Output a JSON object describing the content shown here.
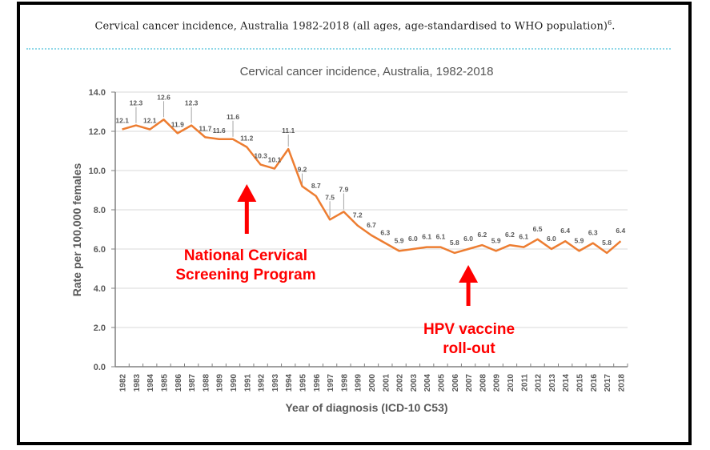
{
  "caption": {
    "text": "Cervical cancer incidence, Australia 1982-2018 (all ages, age-standardised to WHO population)",
    "superscript": "6",
    "trailing": "."
  },
  "colors": {
    "line": "#ed7d31",
    "annotation": "#ff0000",
    "divider": "#8fd8e8",
    "gridline": "#d9d9d9",
    "axis": "#808080",
    "text": "#595959"
  },
  "chart_data": {
    "type": "line",
    "title": "Cervical cancer incidence, Australia, 1982-2018",
    "xlabel": "Year of diagnosis (ICD-10 C53)",
    "ylabel": "Rate per 100,000 females",
    "ylim": [
      0,
      14
    ],
    "yticks": [
      "0.0",
      "2.0",
      "4.0",
      "6.0",
      "8.0",
      "10.0",
      "12.0",
      "14.0"
    ],
    "grid": true,
    "legend": "none",
    "categories": [
      "1982",
      "1983",
      "1984",
      "1985",
      "1986",
      "1987",
      "1988",
      "1989",
      "1990",
      "1991",
      "1992",
      "1993",
      "1994",
      "1995",
      "1996",
      "1997",
      "1998",
      "1999",
      "2000",
      "2001",
      "2002",
      "2003",
      "2004",
      "2005",
      "2006",
      "2007",
      "2008",
      "2009",
      "2010",
      "2011",
      "2012",
      "2013",
      "2014",
      "2015",
      "2016",
      "2017",
      "2018"
    ],
    "series": [
      {
        "name": "Rate per 100,000 females",
        "values": [
          12.1,
          12.3,
          12.1,
          12.6,
          11.9,
          12.3,
          11.7,
          11.6,
          11.6,
          11.2,
          10.3,
          10.1,
          11.1,
          9.2,
          8.7,
          7.5,
          7.9,
          7.2,
          6.7,
          6.3,
          5.9,
          6.0,
          6.1,
          6.1,
          5.8,
          6.0,
          6.2,
          5.9,
          6.2,
          6.1,
          6.5,
          6.0,
          6.4,
          5.9,
          6.3,
          5.8,
          6.4
        ]
      }
    ],
    "annotations": [
      {
        "text_lines": [
          "National Cervical",
          "Screening Program"
        ],
        "year": "1991",
        "arrow": "up"
      },
      {
        "text_lines": [
          "HPV vaccine",
          "roll-out"
        ],
        "year": "2007",
        "arrow": "up"
      }
    ]
  }
}
